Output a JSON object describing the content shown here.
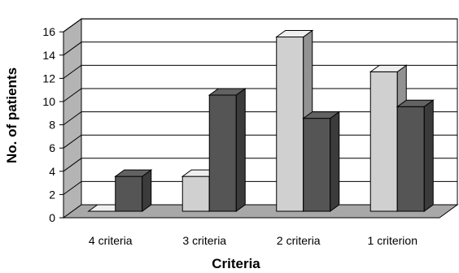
{
  "chart_data": {
    "type": "bar",
    "categories": [
      "4 criteria",
      "3 criteria",
      "2 criteria",
      "1 criterion"
    ],
    "series": [
      {
        "values": [
          0,
          3,
          15,
          12
        ],
        "color": "#d0d0d0"
      },
      {
        "values": [
          3,
          10,
          8,
          9
        ],
        "color": "#555555"
      }
    ],
    "yticks": [
      "0",
      "2",
      "4",
      "6",
      "8",
      "10",
      "12",
      "14",
      "16"
    ],
    "ylim": [
      0,
      16
    ],
    "xlabel": "Criteria",
    "ylabel": "No. of patients",
    "grid": true,
    "three_d": true
  }
}
